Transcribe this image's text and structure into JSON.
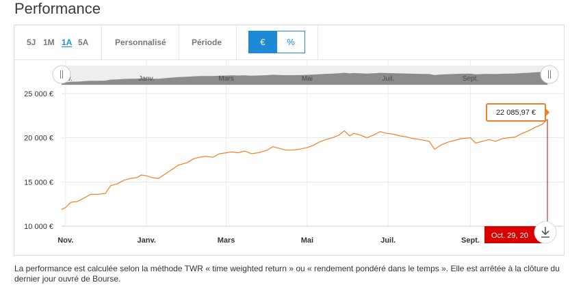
{
  "page": {
    "title": "Performance"
  },
  "toolbar": {
    "ranges": [
      "5J",
      "1M",
      "1A",
      "5A"
    ],
    "active_range": "1A",
    "custom_label": "Personnalisé",
    "period_label": "Période",
    "unit_euro": "€",
    "unit_percent": "%",
    "active_unit": "€"
  },
  "footnote": "La performance est calculée selon la méthode TWR « time weighted return » ou « rendement pondéré dans le temps ». Elle est arrêtée à la clôture du dernier jour ouvré de Bourse.",
  "colors": {
    "line": "#f07f1f",
    "accent": "#1c8ad6",
    "date_badge": "#d90000",
    "navigator": "#8c8c8c"
  },
  "chart_data": {
    "type": "line",
    "title": "",
    "xlabel": "",
    "ylabel": "",
    "x_tick_labels": [
      "Nov.",
      "Janv.",
      "Mars",
      "Mai",
      "Juil.",
      "Sept."
    ],
    "x_ticks": [
      "2023-11-01",
      "2024-01-01",
      "2024-03-01",
      "2024-05-01",
      "2024-07-01",
      "2024-09-01"
    ],
    "y_ticks": [
      10000,
      15000,
      20000,
      25000
    ],
    "y_tick_labels": [
      "10 000 €",
      "15 000 €",
      "20 000 €",
      "25 000 €"
    ],
    "xlim": [
      "2023-10-29",
      "2024-10-29"
    ],
    "ylim": [
      10000,
      26000
    ],
    "grid": true,
    "last_value_label": "22 085,97 €",
    "last_date_label": "Oct. 29, 20",
    "series": [
      {
        "name": "",
        "points": [
          [
            "2023-10-29",
            11900
          ],
          [
            "2023-11-01",
            12100
          ],
          [
            "2023-11-05",
            12700
          ],
          [
            "2023-11-10",
            12800
          ],
          [
            "2023-11-15",
            13200
          ],
          [
            "2023-11-20",
            13600
          ],
          [
            "2023-11-25",
            13600
          ],
          [
            "2023-12-01",
            13700
          ],
          [
            "2023-12-05",
            14600
          ],
          [
            "2023-12-10",
            14800
          ],
          [
            "2023-12-15",
            15200
          ],
          [
            "2023-12-20",
            15400
          ],
          [
            "2023-12-25",
            15500
          ],
          [
            "2023-12-28",
            15800
          ],
          [
            "2024-01-01",
            15700
          ],
          [
            "2024-01-05",
            15500
          ],
          [
            "2024-01-10",
            15400
          ],
          [
            "2024-01-15",
            15900
          ],
          [
            "2024-01-20",
            16400
          ],
          [
            "2024-01-25",
            16900
          ],
          [
            "2024-02-01",
            17200
          ],
          [
            "2024-02-05",
            17600
          ],
          [
            "2024-02-10",
            17800
          ],
          [
            "2024-02-15",
            17900
          ],
          [
            "2024-02-20",
            17800
          ],
          [
            "2024-02-25",
            18200
          ],
          [
            "2024-03-01",
            18300
          ],
          [
            "2024-03-05",
            18400
          ],
          [
            "2024-03-10",
            18300
          ],
          [
            "2024-03-15",
            18500
          ],
          [
            "2024-03-20",
            18200
          ],
          [
            "2024-03-25",
            18300
          ],
          [
            "2024-04-01",
            18600
          ],
          [
            "2024-04-05",
            19000
          ],
          [
            "2024-04-10",
            18800
          ],
          [
            "2024-04-15",
            18600
          ],
          [
            "2024-04-20",
            18600
          ],
          [
            "2024-04-25",
            18700
          ],
          [
            "2024-05-01",
            18900
          ],
          [
            "2024-05-05",
            19100
          ],
          [
            "2024-05-10",
            19500
          ],
          [
            "2024-05-15",
            19800
          ],
          [
            "2024-05-20",
            20000
          ],
          [
            "2024-05-25",
            20300
          ],
          [
            "2024-05-29",
            20800
          ],
          [
            "2024-06-02",
            20200
          ],
          [
            "2024-06-05",
            20500
          ],
          [
            "2024-06-10",
            20300
          ],
          [
            "2024-06-15",
            20000
          ],
          [
            "2024-06-20",
            20300
          ],
          [
            "2024-06-25",
            20700
          ],
          [
            "2024-06-30",
            20500
          ],
          [
            "2024-07-05",
            20400
          ],
          [
            "2024-07-10",
            20200
          ],
          [
            "2024-07-15",
            20100
          ],
          [
            "2024-07-20",
            19900
          ],
          [
            "2024-07-25",
            19800
          ],
          [
            "2024-08-01",
            19600
          ],
          [
            "2024-08-05",
            18700
          ],
          [
            "2024-08-10",
            19200
          ],
          [
            "2024-08-15",
            19500
          ],
          [
            "2024-08-20",
            19700
          ],
          [
            "2024-08-25",
            19900
          ],
          [
            "2024-09-01",
            20000
          ],
          [
            "2024-09-05",
            19400
          ],
          [
            "2024-09-10",
            19600
          ],
          [
            "2024-09-15",
            19800
          ],
          [
            "2024-09-20",
            19600
          ],
          [
            "2024-09-25",
            19900
          ],
          [
            "2024-09-30",
            20000
          ],
          [
            "2024-10-05",
            20100
          ],
          [
            "2024-10-10",
            20500
          ],
          [
            "2024-10-15",
            20800
          ],
          [
            "2024-10-20",
            21200
          ],
          [
            "2024-10-25",
            21500
          ],
          [
            "2024-10-29",
            22086
          ]
        ]
      }
    ]
  }
}
